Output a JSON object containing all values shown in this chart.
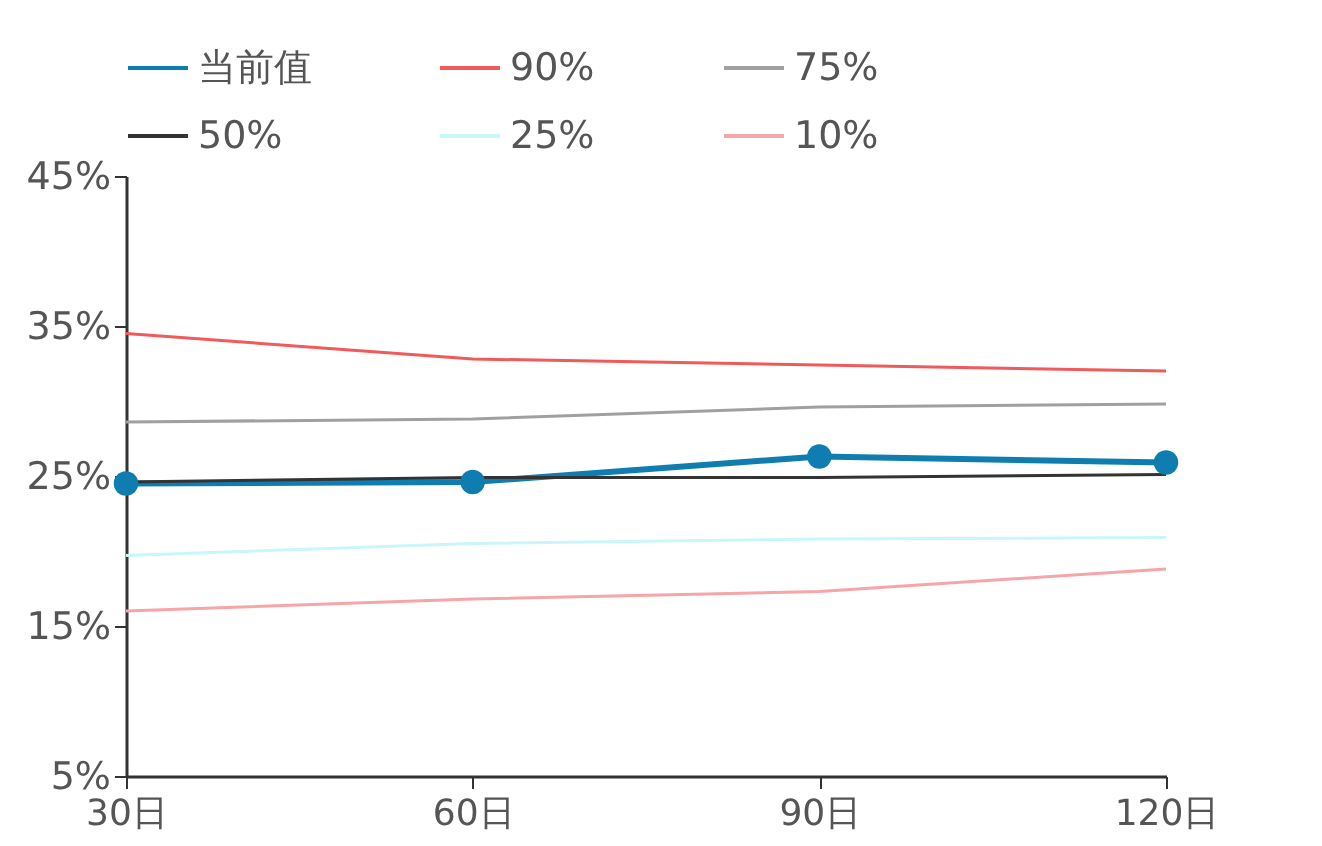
{
  "chart_data": {
    "type": "line",
    "categories": [
      "30日",
      "60日",
      "90日",
      "120日"
    ],
    "series": [
      {
        "name": "当前值",
        "color": "#0f7db0",
        "marker": "circle",
        "values": [
          24.5,
          24.6,
          26.3,
          25.9
        ]
      },
      {
        "name": "90%",
        "color": "#f05a5a",
        "values": [
          34.5,
          32.8,
          32.4,
          32.0
        ]
      },
      {
        "name": "75%",
        "color": "#a0a0a0",
        "values": [
          28.6,
          28.8,
          29.6,
          29.8
        ]
      },
      {
        "name": "50%",
        "color": "#333333",
        "values": [
          24.6,
          24.9,
          24.9,
          25.1
        ]
      },
      {
        "name": "25%",
        "color": "#c8f6fa",
        "values": [
          19.7,
          20.5,
          20.8,
          20.9
        ]
      },
      {
        "name": "10%",
        "color": "#f6a5a8",
        "values": [
          16.0,
          16.8,
          17.3,
          18.8
        ]
      }
    ],
    "ylim": [
      5,
      45
    ],
    "yticks": [
      {
        "value": 5,
        "label": "5%"
      },
      {
        "value": 15,
        "label": "15%"
      },
      {
        "value": 25,
        "label": "25%"
      },
      {
        "value": 35,
        "label": "35%"
      },
      {
        "value": 45,
        "label": "45%"
      }
    ],
    "grid": false,
    "legend": "top"
  }
}
